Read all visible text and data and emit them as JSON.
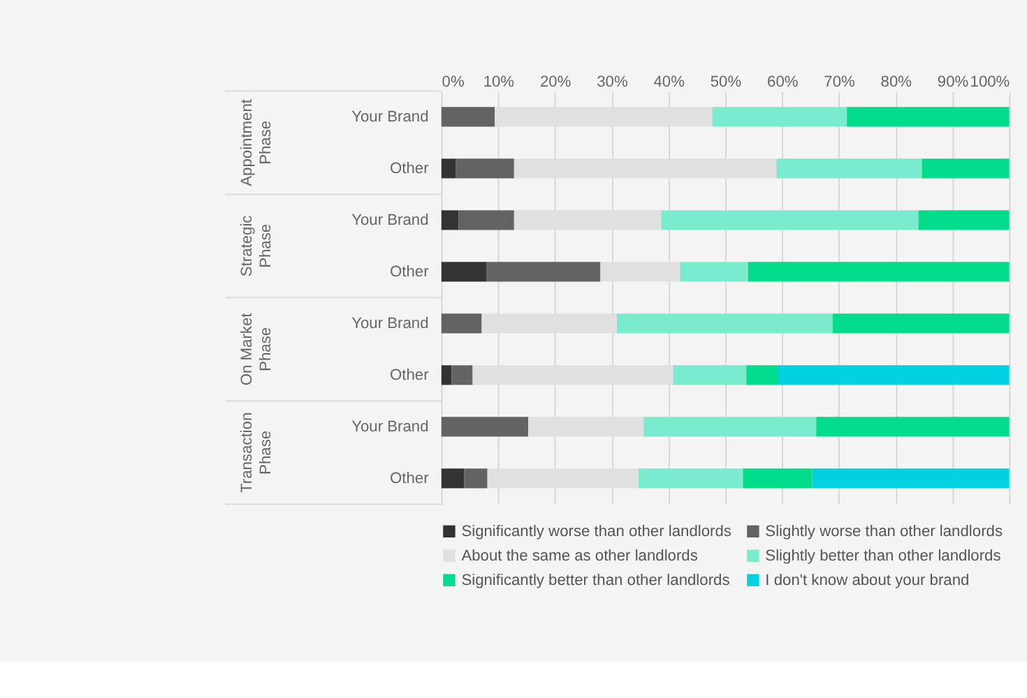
{
  "chart_data": {
    "type": "bar",
    "orientation": "horizontal",
    "stacked": true,
    "categories": [
      "Your Brand",
      "Other",
      "Your Brand",
      "Other",
      "Your Brand",
      "Other",
      "Your Brand",
      "Other"
    ],
    "series": [
      {
        "name": "Significantly worse than other landlords",
        "color": "#333134",
        "values": [
          0,
          2.5,
          3.0,
          7.9,
          0,
          1.8,
          0,
          4.0
        ]
      },
      {
        "name": "Slightly worse than other landlords",
        "color": "#636363",
        "values": [
          9.4,
          10.3,
          9.8,
          20.1,
          7.1,
          3.7,
          15.3,
          4.1
        ]
      },
      {
        "name": "About the same as other landlords",
        "color": "#e0e0e0",
        "values": [
          38.3,
          46.2,
          25.9,
          14.0,
          23.8,
          35.3,
          20.3,
          26.6
        ]
      },
      {
        "name": "Slightly better than other landlords",
        "color": "#7aebcc",
        "values": [
          23.7,
          25.6,
          45.3,
          12.0,
          38.0,
          12.9,
          30.4,
          18.4
        ]
      },
      {
        "name": "Significantly better than other landlords",
        "color": "#00dc8c",
        "values": [
          28.6,
          15.4,
          16.0,
          46.0,
          31.1,
          5.5,
          34.0,
          12.2
        ]
      },
      {
        "name": "I don't know about your brand",
        "color": "#00d2e2",
        "values": [
          0,
          0,
          0,
          0,
          0,
          40.8,
          0,
          34.7
        ]
      }
    ],
    "xlim": [
      0,
      100
    ],
    "xticks": [
      {
        "value": 0,
        "label": "0%"
      },
      {
        "value": 10,
        "label": "10%"
      },
      {
        "value": 20,
        "label": "20%"
      },
      {
        "value": 30,
        "label": "30%"
      },
      {
        "value": 40,
        "label": "40%"
      },
      {
        "value": 50,
        "label": "50%"
      },
      {
        "value": 60,
        "label": "60%"
      },
      {
        "value": 70,
        "label": "70%"
      },
      {
        "value": 80,
        "label": "80%"
      },
      {
        "value": 90,
        "label": "90%"
      },
      {
        "value": 100,
        "label": "100%"
      }
    ],
    "annotations": [
      "Appointment Phase",
      "Strategic Phase",
      "On Market Phase",
      "Transaction Phase"
    ],
    "grid": "x",
    "legend": "bottom"
  }
}
